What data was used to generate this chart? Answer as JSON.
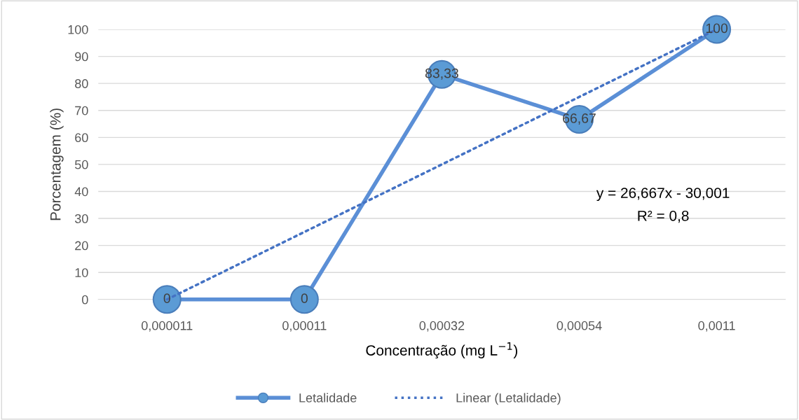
{
  "chart_data": {
    "type": "line",
    "xlabel": "Concentração (mg L$^{−1}$)",
    "ylabel": "Porcentagem (%)",
    "categories": [
      "0,000011",
      "0,00011",
      "0,00032",
      "0,00054",
      "0,0011"
    ],
    "series": [
      {
        "name": "Letalidade",
        "color": "#5b8fd6",
        "values": [
          0,
          0,
          83.33,
          66.67,
          100
        ],
        "marker": "circle",
        "line_style": "solid",
        "data_labels": true,
        "value_labels": [
          "0",
          "0",
          "83,33",
          "66,67",
          "100"
        ]
      },
      {
        "name": "Linear (Letalidade)",
        "color": "#4472c4",
        "x": [
          "0,000011",
          "0,0011"
        ],
        "values": [
          0,
          100
        ],
        "line_style": "dotted"
      }
    ],
    "ylim": [
      0,
      100
    ],
    "yticks": [
      0,
      10,
      20,
      30,
      40,
      50,
      60,
      70,
      80,
      90,
      100
    ],
    "grid": "y",
    "legend": "bottom",
    "annotations": [
      "y = 26,667x - 30,001",
      "R² = 0,8"
    ]
  }
}
